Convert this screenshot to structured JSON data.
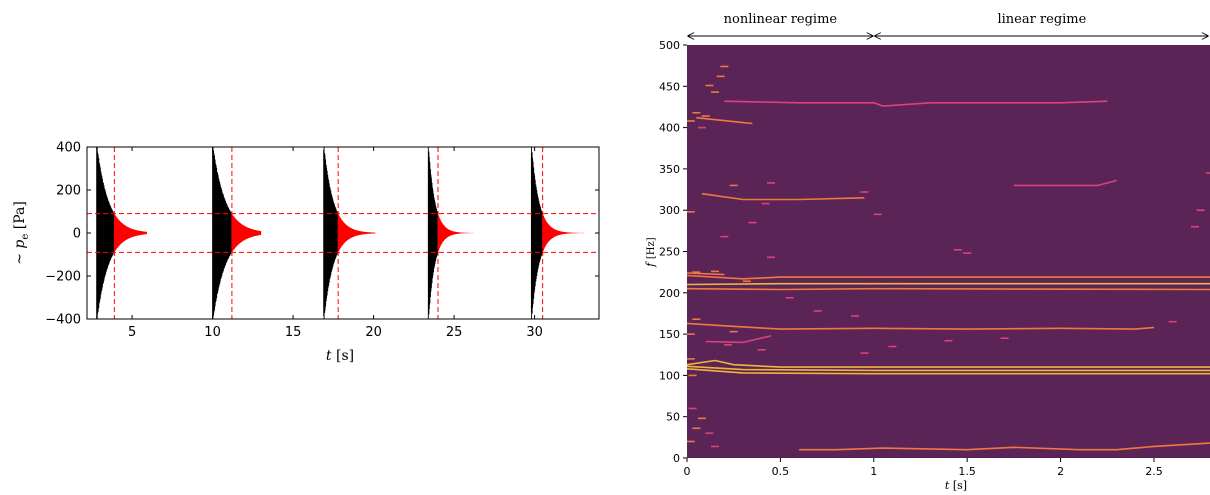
{
  "chart_data": [
    {
      "type": "line",
      "xlabel_var": "t",
      "xlabel_unit": "[s]",
      "ylabel_prefix": "~",
      "ylabel_var": "p",
      "ylabel_sub": "e",
      "ylabel_unit": "[Pa]",
      "xlim": [
        2.2,
        34.0
      ],
      "ylim": [
        -400,
        400
      ],
      "xticks": [
        5,
        10,
        15,
        20,
        25,
        30
      ],
      "yticks": [
        -400,
        -200,
        0,
        200,
        400
      ],
      "ytick_labels": [
        "−400",
        "−200",
        "0",
        "200",
        "400"
      ],
      "grid": false,
      "colors": {
        "nonlinear": "#000000",
        "linear": "#ff0000",
        "threshold": "#ff0000"
      },
      "threshold_pressure": [
        90,
        -90
      ],
      "series": [
        {
          "start": 2.8,
          "switch": 3.9,
          "end": 5.9,
          "amp0": 420,
          "amp_switch": 90
        },
        {
          "start": 10.0,
          "switch": 11.2,
          "end": 13.0,
          "amp0": 420,
          "amp_switch": 90
        },
        {
          "start": 16.9,
          "switch": 17.8,
          "end": 20.1,
          "amp0": 420,
          "amp_switch": 90
        },
        {
          "start": 23.4,
          "switch": 24.0,
          "end": 26.6,
          "amp0": 420,
          "amp_switch": 90
        },
        {
          "start": 29.8,
          "switch": 30.5,
          "end": 33.2,
          "amp0": 420,
          "amp_switch": 90
        }
      ]
    },
    {
      "type": "heatmap",
      "xlabel_var": "t",
      "xlabel_unit": "[s]",
      "ylabel_var": "f",
      "ylabel_unit": "[Hz]",
      "xlim": [
        0,
        2.8
      ],
      "ylim": [
        0,
        500
      ],
      "xticks": [
        0,
        0.5,
        1,
        1.5,
        2,
        2.5
      ],
      "yticks": [
        0,
        50,
        100,
        150,
        200,
        250,
        300,
        350,
        400,
        450,
        500
      ],
      "background": "#5a2456",
      "colors": {
        "strong": "#f0b43c",
        "medium": "#f07840",
        "weak": "#e0407a"
      },
      "annotations": {
        "left": "nonlinear regime",
        "right": "linear regime",
        "boundary": 1.0
      },
      "lines": [
        {
          "color": "strong",
          "points": [
            [
              0,
              111
            ],
            [
              0.3,
              107
            ],
            [
              1,
              106
            ],
            [
              2.8,
              106
            ]
          ]
        },
        {
          "color": "strong",
          "points": [
            [
              0,
              108
            ],
            [
              0.3,
              103
            ],
            [
              1,
              102
            ],
            [
              2.8,
              102
            ]
          ]
        },
        {
          "color": "strong",
          "points": [
            [
              0,
              113
            ],
            [
              0.15,
              118
            ],
            [
              0.25,
              113
            ],
            [
              0.5,
              110
            ],
            [
              2.8,
              110
            ]
          ]
        },
        {
          "color": "medium",
          "points": [
            [
              0,
              205
            ],
            [
              0.5,
              204
            ],
            [
              1,
              205
            ],
            [
              2.8,
              204
            ]
          ]
        },
        {
          "color": "strong",
          "points": [
            [
              0,
              210
            ],
            [
              0.5,
              211
            ],
            [
              1,
              211
            ],
            [
              2.8,
              211
            ]
          ]
        },
        {
          "color": "medium",
          "points": [
            [
              0,
              221
            ],
            [
              0.3,
              217
            ],
            [
              0.5,
              219
            ],
            [
              1,
              219
            ],
            [
              2.8,
              219
            ]
          ]
        },
        {
          "color": "medium",
          "points": [
            [
              0,
              224
            ],
            [
              0.2,
              222
            ]
          ]
        },
        {
          "color": "medium",
          "points": [
            [
              0,
              163
            ],
            [
              0.2,
              160
            ],
            [
              0.5,
              156
            ],
            [
              1,
              157
            ],
            [
              1.5,
              156
            ],
            [
              2,
              157
            ],
            [
              2.4,
              156
            ],
            [
              2.5,
              158
            ]
          ]
        },
        {
          "color": "medium",
          "points": [
            [
              0.08,
              320
            ],
            [
              0.3,
              313
            ],
            [
              0.6,
              313
            ],
            [
              0.95,
              315
            ]
          ]
        },
        {
          "color": "weak",
          "points": [
            [
              0.2,
              432
            ],
            [
              0.6,
              430
            ],
            [
              1,
              430
            ],
            [
              1.05,
              426
            ],
            [
              1.3,
              430
            ],
            [
              2,
              430
            ],
            [
              2.25,
              432
            ]
          ]
        },
        {
          "color": "medium",
          "points": [
            [
              0.05,
              412
            ],
            [
              0.3,
              406
            ],
            [
              0.35,
              405
            ]
          ]
        },
        {
          "color": "weak",
          "points": [
            [
              1.75,
              330
            ],
            [
              2.2,
              330
            ],
            [
              2.3,
              336
            ]
          ]
        },
        {
          "color": "medium",
          "points": [
            [
              0.6,
              10
            ],
            [
              0.8,
              10
            ],
            [
              1.05,
              12
            ],
            [
              1.5,
              10
            ],
            [
              1.75,
              13
            ],
            [
              2.1,
              10
            ],
            [
              2.3,
              10
            ],
            [
              2.5,
              14
            ],
            [
              2.8,
              18
            ]
          ]
        },
        {
          "color": "weak",
          "points": [
            [
              0.1,
              141
            ],
            [
              0.3,
              140
            ],
            [
              0.45,
              148
            ]
          ]
        }
      ],
      "dashes": [
        [
          0.2,
          474,
          "medium"
        ],
        [
          0.18,
          462,
          "medium"
        ],
        [
          0.12,
          451,
          "medium"
        ],
        [
          0.15,
          443,
          "medium"
        ],
        [
          0.05,
          418,
          "medium"
        ],
        [
          0.1,
          414,
          "medium"
        ],
        [
          0.02,
          408,
          "medium"
        ],
        [
          0.08,
          400,
          "weak"
        ],
        [
          0.45,
          333,
          "weak"
        ],
        [
          0.25,
          330,
          "medium"
        ],
        [
          0.42,
          308,
          "weak"
        ],
        [
          0.35,
          285,
          "weak"
        ],
        [
          0.2,
          268,
          "weak"
        ],
        [
          0.45,
          243,
          "weak"
        ],
        [
          0.02,
          298,
          "medium"
        ],
        [
          0.95,
          322,
          "weak"
        ],
        [
          0.05,
          225,
          "medium"
        ],
        [
          0.15,
          226,
          "medium"
        ],
        [
          0.32,
          214,
          "medium"
        ],
        [
          0.55,
          194,
          "weak"
        ],
        [
          0.7,
          178,
          "weak"
        ],
        [
          0.9,
          172,
          "weak"
        ],
        [
          0.05,
          168,
          "medium"
        ],
        [
          0.02,
          150,
          "medium"
        ],
        [
          0.25,
          153,
          "medium"
        ],
        [
          0.4,
          131,
          "weak"
        ],
        [
          0.22,
          137,
          "weak"
        ],
        [
          0.95,
          127,
          "weak"
        ],
        [
          1.1,
          135,
          "weak"
        ],
        [
          1.4,
          142,
          "weak"
        ],
        [
          1.5,
          248,
          "weak"
        ],
        [
          1.45,
          252,
          "weak"
        ],
        [
          1.7,
          145,
          "weak"
        ],
        [
          2.6,
          165,
          "weak"
        ],
        [
          2.72,
          280,
          "weak"
        ],
        [
          2.75,
          300,
          "weak"
        ],
        [
          2.8,
          345,
          "weak"
        ],
        [
          0.08,
          48,
          "medium"
        ],
        [
          0.05,
          36,
          "medium"
        ],
        [
          0.12,
          30,
          "weak"
        ],
        [
          0.02,
          20,
          "medium"
        ],
        [
          0.15,
          14,
          "weak"
        ],
        [
          0.03,
          60,
          "weak"
        ],
        [
          0.03,
          100,
          "medium"
        ],
        [
          0.02,
          120,
          "medium"
        ],
        [
          1.02,
          295,
          "weak"
        ]
      ]
    }
  ]
}
